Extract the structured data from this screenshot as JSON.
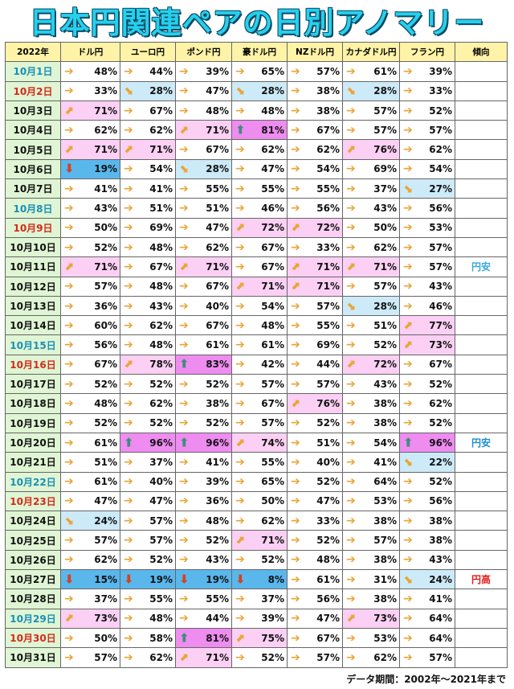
{
  "title": "日本円関連ペアの日別アノマリー",
  "header": {
    "year": "2022年",
    "columns": [
      "ドル円",
      "ユーロ円",
      "ポンド円",
      "豪ドル円",
      "NZドル円",
      "カナダドル円",
      "フラン円"
    ],
    "trend": "傾向"
  },
  "colors": {
    "up": "#fbd0f4",
    "strong_up": "#ee8cf0",
    "down": "#cdeaf8",
    "strong_down": "#5ab7ec",
    "saturday": "#1a8fb5",
    "sunday": "#d62a1a"
  },
  "rows": [
    {
      "date": "10月1日",
      "day": "sat",
      "values": [
        "48%",
        "44%",
        "39%",
        "65%",
        "57%",
        "61%",
        "39%"
      ],
      "dirs": [
        "f",
        "f",
        "f",
        "f",
        "f",
        "f",
        "f"
      ],
      "trend": ""
    },
    {
      "date": "10月2日",
      "day": "sun",
      "values": [
        "33%",
        "28%",
        "47%",
        "28%",
        "38%",
        "28%",
        "33%"
      ],
      "dirs": [
        "f",
        "d",
        "f",
        "d",
        "f",
        "d",
        "f"
      ],
      "trend": ""
    },
    {
      "date": "10月3日",
      "day": "wk",
      "values": [
        "71%",
        "67%",
        "48%",
        "48%",
        "38%",
        "57%",
        "52%"
      ],
      "dirs": [
        "u",
        "f",
        "f",
        "f",
        "f",
        "f",
        "f"
      ],
      "trend": ""
    },
    {
      "date": "10月4日",
      "day": "wk",
      "values": [
        "62%",
        "62%",
        "71%",
        "81%",
        "67%",
        "57%",
        "57%"
      ],
      "dirs": [
        "f",
        "f",
        "u",
        "U",
        "f",
        "f",
        "f"
      ],
      "trend": ""
    },
    {
      "date": "10月5日",
      "day": "wk",
      "values": [
        "71%",
        "71%",
        "67%",
        "62%",
        "62%",
        "76%",
        "62%"
      ],
      "dirs": [
        "u",
        "u",
        "f",
        "f",
        "f",
        "u",
        "f"
      ],
      "trend": ""
    },
    {
      "date": "10月6日",
      "day": "wk",
      "values": [
        "19%",
        "54%",
        "28%",
        "47%",
        "54%",
        "69%",
        "54%"
      ],
      "dirs": [
        "D",
        "f",
        "d",
        "f",
        "f",
        "f",
        "f"
      ],
      "trend": ""
    },
    {
      "date": "10月7日",
      "day": "wk",
      "values": [
        "41%",
        "41%",
        "55%",
        "55%",
        "55%",
        "37%",
        "27%"
      ],
      "dirs": [
        "f",
        "f",
        "f",
        "f",
        "f",
        "f",
        "d"
      ],
      "trend": ""
    },
    {
      "date": "10月8日",
      "day": "sat",
      "values": [
        "43%",
        "51%",
        "51%",
        "46%",
        "56%",
        "43%",
        "56%"
      ],
      "dirs": [
        "f",
        "f",
        "f",
        "f",
        "f",
        "f",
        "f"
      ],
      "trend": ""
    },
    {
      "date": "10月9日",
      "day": "sun",
      "values": [
        "50%",
        "69%",
        "47%",
        "72%",
        "72%",
        "50%",
        "53%"
      ],
      "dirs": [
        "f",
        "f",
        "f",
        "u",
        "u",
        "f",
        "f"
      ],
      "trend": ""
    },
    {
      "date": "10月10日",
      "day": "wk",
      "values": [
        "52%",
        "48%",
        "62%",
        "67%",
        "33%",
        "62%",
        "57%"
      ],
      "dirs": [
        "f",
        "f",
        "f",
        "f",
        "f",
        "f",
        "f"
      ],
      "trend": ""
    },
    {
      "date": "10月11日",
      "day": "wk",
      "values": [
        "71%",
        "67%",
        "71%",
        "67%",
        "71%",
        "71%",
        "57%"
      ],
      "dirs": [
        "u",
        "f",
        "u",
        "f",
        "u",
        "u",
        "f"
      ],
      "trend": "円安"
    },
    {
      "date": "10月12日",
      "day": "wk",
      "values": [
        "57%",
        "48%",
        "67%",
        "71%",
        "71%",
        "57%",
        "43%"
      ],
      "dirs": [
        "f",
        "f",
        "f",
        "u",
        "u",
        "f",
        "f"
      ],
      "trend": ""
    },
    {
      "date": "10月13日",
      "day": "wk",
      "values": [
        "36%",
        "43%",
        "40%",
        "54%",
        "57%",
        "28%",
        "46%"
      ],
      "dirs": [
        "f",
        "f",
        "f",
        "f",
        "f",
        "d",
        "f"
      ],
      "trend": ""
    },
    {
      "date": "10月14日",
      "day": "wk",
      "values": [
        "60%",
        "62%",
        "67%",
        "48%",
        "55%",
        "51%",
        "77%"
      ],
      "dirs": [
        "f",
        "f",
        "f",
        "f",
        "f",
        "f",
        "u"
      ],
      "trend": ""
    },
    {
      "date": "10月15日",
      "day": "sat",
      "values": [
        "56%",
        "48%",
        "61%",
        "61%",
        "69%",
        "52%",
        "73%"
      ],
      "dirs": [
        "f",
        "f",
        "f",
        "f",
        "f",
        "f",
        "u"
      ],
      "trend": ""
    },
    {
      "date": "10月16日",
      "day": "sun",
      "values": [
        "67%",
        "78%",
        "83%",
        "42%",
        "44%",
        "72%",
        "67%"
      ],
      "dirs": [
        "f",
        "u",
        "U",
        "f",
        "f",
        "u",
        "f"
      ],
      "trend": ""
    },
    {
      "date": "10月17日",
      "day": "wk",
      "values": [
        "52%",
        "52%",
        "52%",
        "57%",
        "57%",
        "43%",
        "52%"
      ],
      "dirs": [
        "f",
        "f",
        "f",
        "f",
        "f",
        "f",
        "f"
      ],
      "trend": ""
    },
    {
      "date": "10月18日",
      "day": "wk",
      "values": [
        "48%",
        "62%",
        "38%",
        "67%",
        "76%",
        "38%",
        "62%"
      ],
      "dirs": [
        "f",
        "f",
        "f",
        "f",
        "u",
        "f",
        "f"
      ],
      "trend": ""
    },
    {
      "date": "10月19日",
      "day": "wk",
      "values": [
        "52%",
        "52%",
        "52%",
        "57%",
        "52%",
        "38%",
        "52%"
      ],
      "dirs": [
        "f",
        "f",
        "f",
        "f",
        "f",
        "f",
        "f"
      ],
      "trend": ""
    },
    {
      "date": "10月20日",
      "day": "wk",
      "values": [
        "61%",
        "96%",
        "96%",
        "74%",
        "51%",
        "54%",
        "96%"
      ],
      "dirs": [
        "f",
        "U",
        "U",
        "u",
        "f",
        "f",
        "U"
      ],
      "trend": "円安"
    },
    {
      "date": "10月21日",
      "day": "wk",
      "values": [
        "51%",
        "37%",
        "41%",
        "55%",
        "40%",
        "41%",
        "22%"
      ],
      "dirs": [
        "f",
        "f",
        "f",
        "f",
        "f",
        "f",
        "d"
      ],
      "trend": ""
    },
    {
      "date": "10月22日",
      "day": "sat",
      "values": [
        "61%",
        "40%",
        "39%",
        "65%",
        "52%",
        "64%",
        "52%"
      ],
      "dirs": [
        "f",
        "f",
        "f",
        "f",
        "f",
        "f",
        "f"
      ],
      "trend": ""
    },
    {
      "date": "10月23日",
      "day": "sun",
      "values": [
        "47%",
        "47%",
        "36%",
        "50%",
        "47%",
        "53%",
        "56%"
      ],
      "dirs": [
        "f",
        "f",
        "f",
        "f",
        "f",
        "f",
        "f"
      ],
      "trend": ""
    },
    {
      "date": "10月24日",
      "day": "wk",
      "values": [
        "24%",
        "57%",
        "48%",
        "62%",
        "33%",
        "38%",
        "38%"
      ],
      "dirs": [
        "d",
        "f",
        "f",
        "f",
        "f",
        "f",
        "f"
      ],
      "trend": ""
    },
    {
      "date": "10月25日",
      "day": "wk",
      "values": [
        "57%",
        "57%",
        "52%",
        "71%",
        "52%",
        "57%",
        "38%"
      ],
      "dirs": [
        "f",
        "f",
        "f",
        "u",
        "f",
        "f",
        "f"
      ],
      "trend": ""
    },
    {
      "date": "10月26日",
      "day": "wk",
      "values": [
        "62%",
        "52%",
        "43%",
        "52%",
        "48%",
        "38%",
        "43%"
      ],
      "dirs": [
        "f",
        "f",
        "f",
        "f",
        "f",
        "f",
        "f"
      ],
      "trend": ""
    },
    {
      "date": "10月27日",
      "day": "wk",
      "values": [
        "15%",
        "19%",
        "19%",
        "8%",
        "61%",
        "31%",
        "24%"
      ],
      "dirs": [
        "D",
        "D",
        "D",
        "D",
        "f",
        "f",
        "d"
      ],
      "trend": "円高"
    },
    {
      "date": "10月28日",
      "day": "wk",
      "values": [
        "37%",
        "55%",
        "55%",
        "37%",
        "56%",
        "38%",
        "41%"
      ],
      "dirs": [
        "f",
        "f",
        "f",
        "f",
        "f",
        "f",
        "f"
      ],
      "trend": ""
    },
    {
      "date": "10月29日",
      "day": "sat",
      "values": [
        "73%",
        "48%",
        "44%",
        "39%",
        "47%",
        "73%",
        "64%"
      ],
      "dirs": [
        "u",
        "f",
        "f",
        "f",
        "f",
        "u",
        "f"
      ],
      "trend": ""
    },
    {
      "date": "10月30日",
      "day": "sun",
      "values": [
        "50%",
        "58%",
        "81%",
        "75%",
        "67%",
        "53%",
        "64%"
      ],
      "dirs": [
        "f",
        "f",
        "U",
        "u",
        "f",
        "f",
        "f"
      ],
      "trend": ""
    },
    {
      "date": "10月31日",
      "day": "wk",
      "values": [
        "57%",
        "62%",
        "71%",
        "52%",
        "57%",
        "62%",
        "57%"
      ],
      "dirs": [
        "f",
        "f",
        "u",
        "f",
        "f",
        "f",
        "f"
      ],
      "trend": ""
    }
  ],
  "footer": "データ期間：2002年～2021年まで"
}
